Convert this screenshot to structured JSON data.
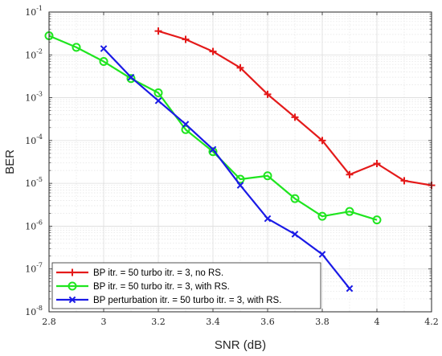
{
  "chart_data": {
    "type": "line",
    "title": "",
    "xlabel": "SNR (dB)",
    "ylabel": "BER",
    "xlim": [
      2.8,
      4.2
    ],
    "ylim": [
      1e-08,
      0.1
    ],
    "yscale": "log",
    "grid": true,
    "minor_grid": true,
    "legend_position": "bottom-left",
    "x_ticks": [
      "2.8",
      "3",
      "3.2",
      "3.4",
      "3.6",
      "3.8",
      "4",
      "4.2"
    ],
    "y_tick_exponents": [
      "-8",
      "-7",
      "-6",
      "-5",
      "-4",
      "-3",
      "-2",
      "-1"
    ],
    "y_tick_base": "10",
    "series": [
      {
        "name": "BP itr. = 50 turbo itr. = 3, no RS.",
        "color": "#e41a1a",
        "marker": "plus",
        "x": [
          3.2,
          3.3,
          3.4,
          3.5,
          3.6,
          3.7,
          3.8,
          3.9,
          4.0,
          4.1,
          4.2
        ],
        "y": [
          0.036,
          0.023,
          0.012,
          0.005,
          0.0012,
          0.00035,
          0.0001,
          1.6e-05,
          2.9e-05,
          1.15e-05,
          9e-06
        ]
      },
      {
        "name": "BP itr. = 50 turbo itr. = 3, with RS.",
        "color": "#1fe51f",
        "marker": "circle",
        "x": [
          2.8,
          2.9,
          3.0,
          3.1,
          3.2,
          3.3,
          3.4,
          3.5,
          3.6,
          3.7,
          3.8,
          3.9,
          4.0
        ],
        "y": [
          0.028,
          0.015,
          0.007,
          0.0028,
          0.0013,
          0.00018,
          5.5e-05,
          1.25e-05,
          1.5e-05,
          4.4e-06,
          1.7e-06,
          2.2e-06,
          1.4e-06
        ]
      },
      {
        "name": "BP perturbation itr. = 50 turbo itr. = 3, with RS.",
        "color": "#1a1ae6",
        "marker": "x",
        "x": [
          3.0,
          3.1,
          3.2,
          3.3,
          3.4,
          3.5,
          3.6,
          3.7,
          3.8,
          3.9
        ],
        "y": [
          0.014,
          0.003,
          0.00085,
          0.00024,
          6.2e-05,
          9e-06,
          1.5e-06,
          6.5e-07,
          2.2e-07,
          3.5e-08
        ]
      }
    ]
  }
}
